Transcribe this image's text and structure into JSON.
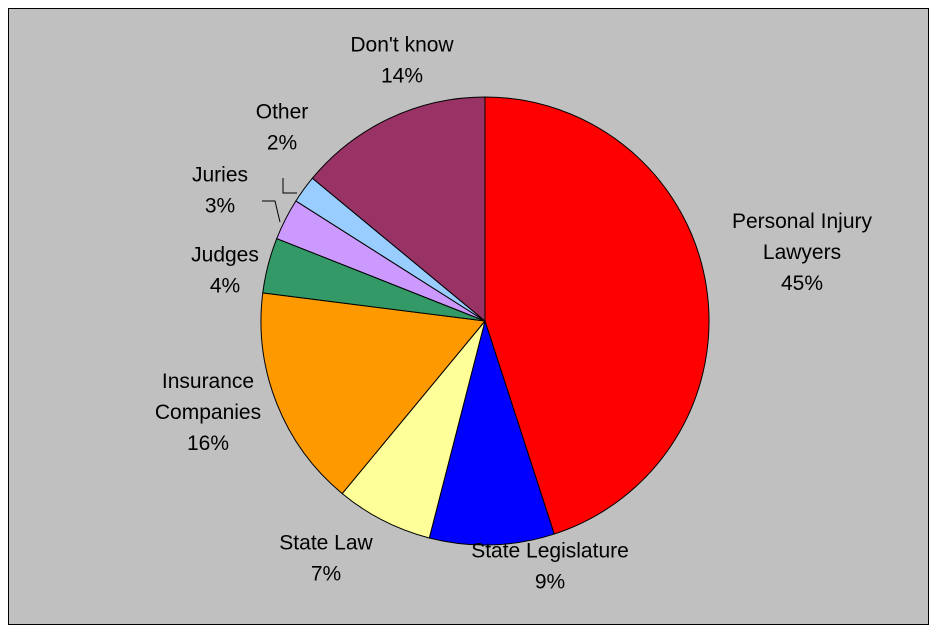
{
  "chart_data": {
    "type": "pie",
    "title": "",
    "legend": "none",
    "start": "12 o'clock, clockwise",
    "slices": [
      {
        "name": "Personal Injury Lawyers",
        "lines": [
          "Personal Injury",
          "Lawyers"
        ],
        "value": 45,
        "value_label": "45%",
        "color": "#ff0000"
      },
      {
        "name": "State Legislature",
        "lines": [
          "State Legislature"
        ],
        "value": 9,
        "value_label": "9%",
        "color": "#0000ff"
      },
      {
        "name": "State Law",
        "lines": [
          "State Law"
        ],
        "value": 7,
        "value_label": "7%",
        "color": "#ffff99"
      },
      {
        "name": "Insurance Companies",
        "lines": [
          "Insurance",
          "Companies"
        ],
        "value": 16,
        "value_label": "16%",
        "color": "#ff9900"
      },
      {
        "name": "Judges",
        "lines": [
          "Judges"
        ],
        "value": 4,
        "value_label": "4%",
        "color": "#339966"
      },
      {
        "name": "Juries",
        "lines": [
          "Juries"
        ],
        "value": 3,
        "value_label": "3%",
        "color": "#cc99ff"
      },
      {
        "name": "Other",
        "lines": [
          "Other"
        ],
        "value": 2,
        "value_label": "2%",
        "color": "#99ccff"
      },
      {
        "name": "Don't know",
        "lines": [
          "Don't know"
        ],
        "value": 14,
        "value_label": "14%",
        "color": "#993366"
      }
    ]
  }
}
